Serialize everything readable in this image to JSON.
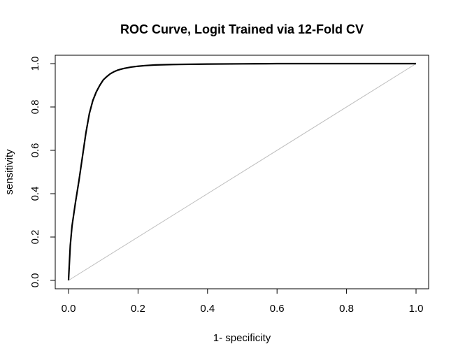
{
  "chart_data": {
    "type": "line",
    "title": "ROC Curve, Logit Trained via 12-Fold CV",
    "xlabel": "1- specificity",
    "ylabel": "sensitivity",
    "xlim": [
      0,
      1
    ],
    "ylim": [
      0,
      1
    ],
    "x_ticks": [
      "0.0",
      "0.2",
      "0.4",
      "0.6",
      "0.8",
      "1.0"
    ],
    "y_ticks": [
      "0.0",
      "0.2",
      "0.4",
      "0.6",
      "0.8",
      "1.0"
    ],
    "grid": false,
    "series": [
      {
        "color": "#000000",
        "x": [
          0.0,
          0.005,
          0.01,
          0.02,
          0.03,
          0.04,
          0.05,
          0.06,
          0.07,
          0.08,
          0.09,
          0.1,
          0.11,
          0.12,
          0.13,
          0.14,
          0.15,
          0.16,
          0.18,
          0.2,
          0.22,
          0.25,
          0.3,
          0.4,
          0.5,
          0.6,
          0.8,
          1.0
        ],
        "y": [
          0.0,
          0.16,
          0.25,
          0.36,
          0.46,
          0.57,
          0.68,
          0.77,
          0.83,
          0.87,
          0.9,
          0.925,
          0.94,
          0.953,
          0.962,
          0.969,
          0.974,
          0.978,
          0.984,
          0.988,
          0.991,
          0.994,
          0.996,
          0.998,
          0.999,
          1.0,
          1.0,
          1.0
        ]
      },
      {
        "color": "#bebebe",
        "x": [
          0,
          1
        ],
        "y": [
          0,
          1
        ]
      }
    ]
  }
}
